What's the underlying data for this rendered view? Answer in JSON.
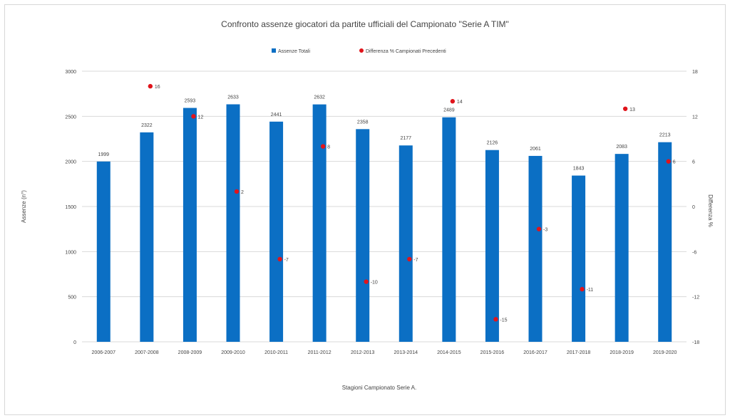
{
  "chart_data": {
    "type": "bar",
    "title": "Confronto assenze giocatori da partite ufficiali del Campionato  \"Serie A TIM\"",
    "xlabel": "Stagioni Campionato Serie A.",
    "ylabel": "Assenze (n°)",
    "y2label": "Differenza %",
    "categories": [
      "2006-2007",
      "2007-2008",
      "2008-2009",
      "2009-2010",
      "2010-2011",
      "2011-2012",
      "2012-2013",
      "2013-2014",
      "2014-2015",
      "2015-2016",
      "2016-2017",
      "2017-2018",
      "2018-2019",
      "2019-2020"
    ],
    "ylim": [
      0,
      3000
    ],
    "yticks": [
      0,
      500,
      1000,
      1500,
      2000,
      2500,
      3000
    ],
    "y2lim": [
      -18,
      18
    ],
    "y2ticks": [
      -18,
      -12,
      -6,
      0,
      6,
      12,
      18
    ],
    "grid": true,
    "legend_position": "top-center",
    "series": [
      {
        "name": "Assenze Totali",
        "type": "bar",
        "axis": "left",
        "color": "#0B6FC4",
        "values": [
          1999,
          2322,
          2593,
          2633,
          2441,
          2632,
          2358,
          2177,
          2489,
          2126,
          2061,
          1843,
          2083,
          2213
        ]
      },
      {
        "name": "Differenza % Campionati Precedenti",
        "type": "scatter",
        "axis": "right",
        "color": "#E0141B",
        "values": [
          null,
          16,
          12,
          2,
          -7,
          8,
          -10,
          -7,
          14,
          -15,
          -3,
          -11,
          13,
          6
        ],
        "labels": [
          "",
          "16",
          "12",
          "2",
          "-7",
          "8",
          "-10",
          "-7",
          "14",
          "-15",
          "-3",
          "-11",
          "13",
          "6"
        ]
      }
    ]
  }
}
